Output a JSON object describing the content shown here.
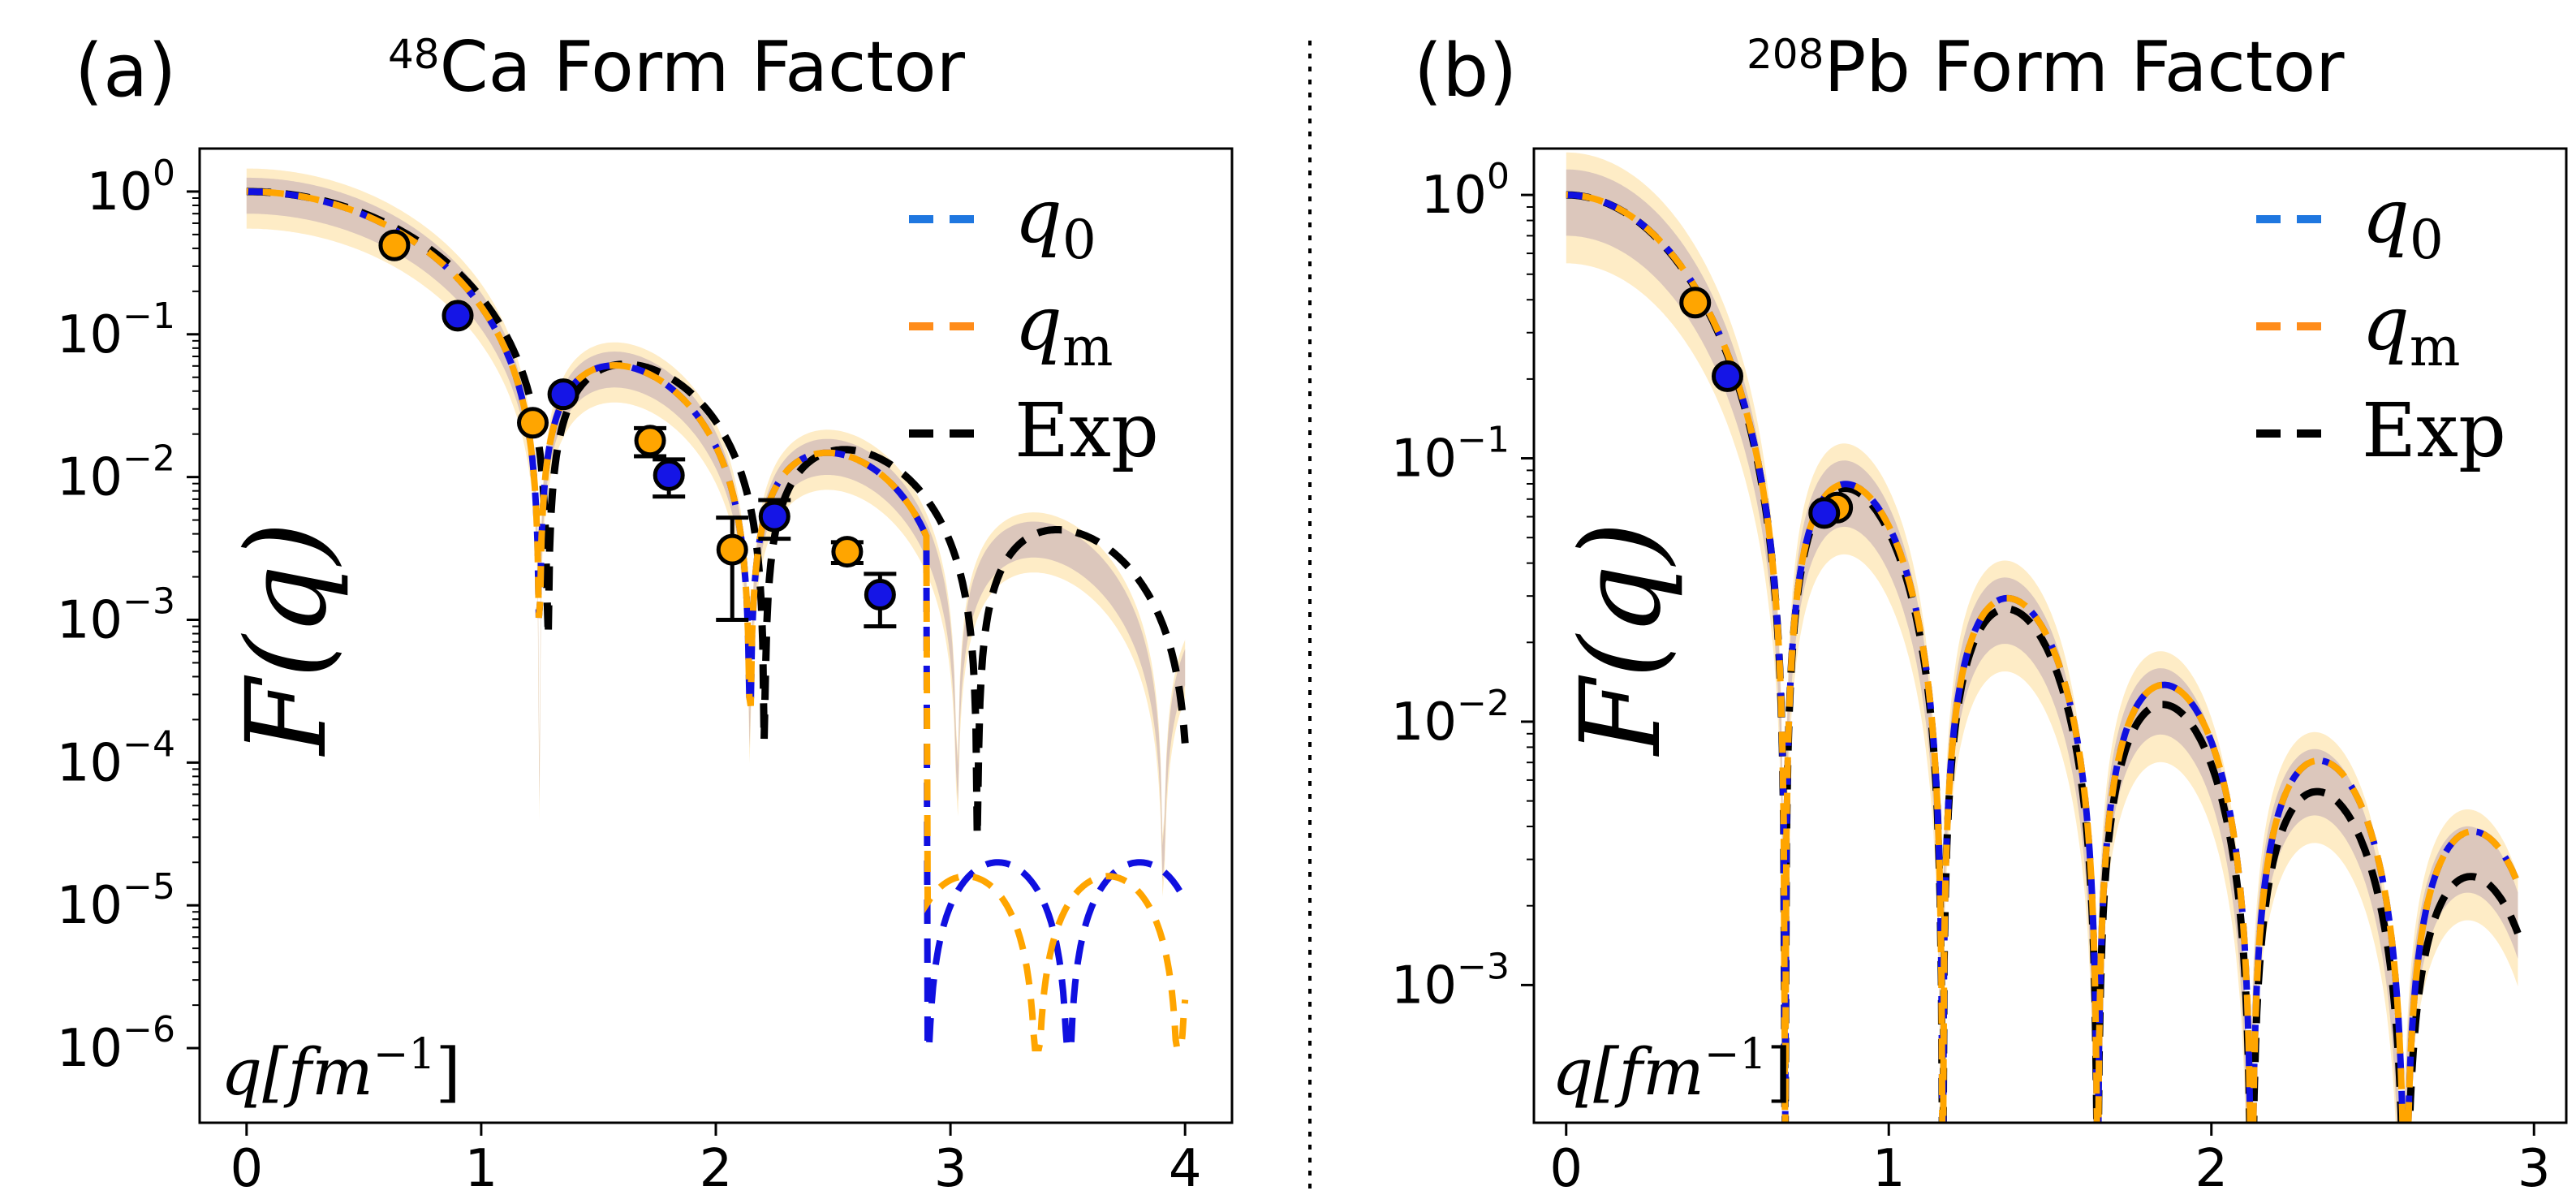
{
  "chart_data": [
    {
      "type": "line",
      "panel_label": "(a)",
      "title": "Ca Form Factor",
      "title_superscript": "48",
      "xlabel": "q[fm",
      "xlabel_exponent": "−1",
      "xlabel_close": "]",
      "ylabel": "F(q)",
      "yscale": "log",
      "xlim": [
        -0.2,
        4.2
      ],
      "ylim": [
        3e-07,
        2
      ],
      "xticks": [
        0,
        1,
        2,
        3,
        4
      ],
      "xtick_labels": [
        "0",
        "1",
        "2",
        "3",
        "4"
      ],
      "yticks": [
        1,
        0.1,
        0.01,
        0.001,
        0.0001,
        1e-05,
        1e-06
      ],
      "ytick_labels": [
        {
          "base": "10",
          "exp": "0"
        },
        {
          "base": "10",
          "exp": "−1"
        },
        {
          "base": "10",
          "exp": "−2"
        },
        {
          "base": "10",
          "exp": "−3"
        },
        {
          "base": "10",
          "exp": "−4"
        },
        {
          "base": "10",
          "exp": "−5"
        },
        {
          "base": "10",
          "exp": "−6"
        }
      ],
      "legend": [
        {
          "label": "q",
          "sub": "0",
          "color": "#1f77e0"
        },
        {
          "label": "q",
          "sub": "m",
          "color": "#ff8c1a"
        },
        {
          "label": "Exp",
          "sub": "",
          "color": "#000000"
        }
      ],
      "model": {
        "R": 3.6,
        "a": 0.53,
        "zero_floor": 2e-07
      },
      "series": [
        {
          "name": "q0",
          "color": "#1010e0",
          "params": {
            "R": 3.6,
            "a": 0.53
          }
        },
        {
          "name": "qm",
          "color": "#ffa500",
          "params": {
            "R": 3.6,
            "a": 0.53,
            "tail_R": 3.66
          }
        },
        {
          "name": "Exp",
          "color": "#000000",
          "params": {
            "R": 3.5,
            "a": 0.5
          }
        }
      ],
      "points": [
        {
          "x": 0.63,
          "y": 0.42,
          "series": "qm",
          "err": 0
        },
        {
          "x": 0.9,
          "y": 0.135,
          "series": "q0",
          "err": 0
        },
        {
          "x": 1.22,
          "y": 0.024,
          "series": "qm",
          "err": 0
        },
        {
          "x": 1.35,
          "y": 0.038,
          "series": "q0",
          "err": 0
        },
        {
          "x": 1.72,
          "y": 0.018,
          "series": "qm",
          "err": 0.004
        },
        {
          "x": 1.8,
          "y": 0.0103,
          "series": "q0",
          "err": 0.003
        },
        {
          "x": 2.07,
          "y": 0.0031,
          "series": "qm",
          "err": 0.0021
        },
        {
          "x": 2.25,
          "y": 0.0053,
          "series": "q0",
          "err": 0.0016
        },
        {
          "x": 2.56,
          "y": 0.003,
          "series": "qm",
          "err": 0.0005
        },
        {
          "x": 2.7,
          "y": 0.0015,
          "series": "q0",
          "err": 0.0006
        }
      ]
    },
    {
      "type": "line",
      "panel_label": "(b)",
      "title": "Pb Form Factor",
      "title_superscript": "208",
      "xlabel": "q[fm",
      "xlabel_exponent": "−1",
      "xlabel_close": "]",
      "ylabel": "F(q)",
      "yscale": "log",
      "xlim": [
        -0.1,
        3.1
      ],
      "ylim": [
        0.0003,
        1.5
      ],
      "xticks": [
        0,
        1,
        2,
        3
      ],
      "xtick_labels": [
        "0",
        "1",
        "2",
        "3"
      ],
      "yticks": [
        1,
        0.1,
        0.01,
        0.001
      ],
      "ytick_labels": [
        {
          "base": "10",
          "exp": "0"
        },
        {
          "base": "10",
          "exp": "−1"
        },
        {
          "base": "10",
          "exp": "−2"
        },
        {
          "base": "10",
          "exp": "−3"
        }
      ],
      "legend": [
        {
          "label": "q",
          "sub": "0",
          "color": "#1f77e0"
        },
        {
          "label": "q",
          "sub": "m",
          "color": "#ff8c1a"
        },
        {
          "label": "Exp",
          "sub": "",
          "color": "#000000"
        }
      ],
      "model": {
        "R": 6.65,
        "a": 0.5,
        "zero_floor": 0.0001
      },
      "series": [
        {
          "name": "q0",
          "color": "#1010e0",
          "params": {
            "R": 6.62,
            "a": 0.45
          }
        },
        {
          "name": "qm",
          "color": "#ffa500",
          "params": {
            "R": 6.62,
            "a": 0.45
          }
        },
        {
          "name": "Exp",
          "color": "#000000",
          "params": {
            "R": 6.62,
            "a": 0.55
          }
        }
      ],
      "points": [
        {
          "x": 0.4,
          "y": 0.39,
          "series": "qm",
          "err": 0
        },
        {
          "x": 0.5,
          "y": 0.205,
          "series": "q0",
          "err": 0
        },
        {
          "x": 0.84,
          "y": 0.065,
          "series": "qm",
          "err": 0
        },
        {
          "x": 0.8,
          "y": 0.062,
          "series": "q0",
          "err": 0
        }
      ]
    }
  ],
  "colors": {
    "q0": "#1010e0",
    "qm": "#ffa500",
    "exp": "#000000",
    "band_qm": "#fde5b3",
    "band_q0": "#cdb8b8"
  }
}
